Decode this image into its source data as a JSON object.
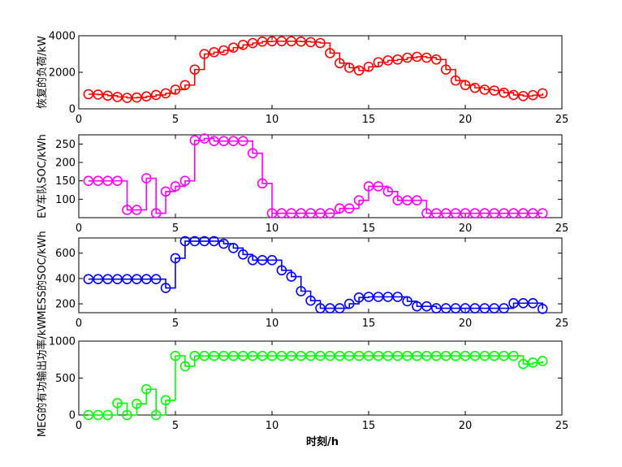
{
  "figure": {
    "xlabel": "时刻/h"
  },
  "chart_data": [
    {
      "type": "line",
      "ylabel": "恢复的负荷/kW",
      "color": "#ff0000",
      "xlim": [
        0,
        25
      ],
      "ylim": [
        0,
        4000
      ],
      "xticks": [
        0,
        5,
        10,
        15,
        20,
        25
      ],
      "yticks": [
        0,
        2000,
        4000
      ],
      "x": [
        0.5,
        1.0,
        1.5,
        2.0,
        2.5,
        3.0,
        3.5,
        4.0,
        4.5,
        5.0,
        5.5,
        6.0,
        6.5,
        7.0,
        7.5,
        8.0,
        8.5,
        9.0,
        9.5,
        10.0,
        10.5,
        11.0,
        11.5,
        12.0,
        12.5,
        13.0,
        13.5,
        14.0,
        14.5,
        15.0,
        15.5,
        16.0,
        16.5,
        17.0,
        17.5,
        18.0,
        18.5,
        19.0,
        19.5,
        20.0,
        20.5,
        21.0,
        21.5,
        22.0,
        22.5,
        23.0,
        23.5,
        24.0
      ],
      "y": [
        800,
        780,
        720,
        650,
        600,
        620,
        680,
        760,
        850,
        1050,
        1300,
        2150,
        3000,
        3100,
        3200,
        3350,
        3500,
        3600,
        3680,
        3700,
        3700,
        3700,
        3680,
        3650,
        3600,
        3050,
        2500,
        2250,
        2100,
        2300,
        2550,
        2650,
        2700,
        2800,
        2850,
        2800,
        2700,
        2150,
        1550,
        1300,
        1150,
        1050,
        1000,
        880,
        760,
        700,
        750,
        850
      ]
    },
    {
      "type": "line",
      "ylabel": "EV车队SOC/kWh",
      "color": "#ff00ff",
      "xlim": [
        0,
        25
      ],
      "ylim": [
        50,
        275
      ],
      "xticks": [
        0,
        5,
        10,
        15,
        20,
        25
      ],
      "yticks": [
        100,
        150,
        200,
        250
      ],
      "x": [
        0.5,
        1.0,
        1.5,
        2.0,
        2.5,
        3.0,
        3.5,
        4.0,
        4.5,
        5.0,
        5.5,
        6.0,
        6.5,
        7.0,
        7.5,
        8.0,
        8.5,
        9.0,
        9.5,
        10.0,
        10.5,
        11.0,
        11.5,
        12.0,
        12.5,
        13.0,
        13.5,
        14.0,
        14.5,
        15.0,
        15.5,
        16.0,
        16.5,
        17.0,
        17.5,
        18.0,
        18.5,
        19.0,
        19.5,
        20.0,
        20.5,
        21.0,
        21.5,
        22.0,
        22.5,
        23.0,
        23.5,
        24.0
      ],
      "y": [
        150,
        150,
        150,
        150,
        71,
        71,
        157,
        62,
        121,
        135,
        150,
        260,
        265,
        258,
        258,
        258,
        258,
        225,
        143,
        62,
        62,
        62,
        62,
        62,
        62,
        62,
        75,
        75,
        97,
        135,
        135,
        121,
        97,
        97,
        97,
        62,
        62,
        62,
        62,
        62,
        62,
        62,
        62,
        62,
        62,
        62,
        62,
        62
      ]
    },
    {
      "type": "line",
      "ylabel": "MESS的SOC/kWh",
      "color": "#0000ff",
      "xlim": [
        0,
        25
      ],
      "ylim": [
        130,
        720
      ],
      "xticks": [
        0,
        5,
        10,
        15,
        20,
        25
      ],
      "yticks": [
        200,
        400,
        600
      ],
      "x": [
        0.5,
        1.0,
        1.5,
        2.0,
        2.5,
        3.0,
        3.5,
        4.0,
        4.5,
        5.0,
        5.5,
        6.0,
        6.5,
        7.0,
        7.5,
        8.0,
        8.5,
        9.0,
        9.5,
        10.0,
        10.5,
        11.0,
        11.5,
        12.0,
        12.5,
        13.0,
        13.5,
        14.0,
        14.5,
        15.0,
        15.5,
        16.0,
        16.5,
        17.0,
        17.5,
        18.0,
        18.5,
        19.0,
        19.5,
        20.0,
        20.5,
        21.0,
        21.5,
        22.0,
        22.5,
        23.0,
        23.5,
        24.0
      ],
      "y": [
        395,
        395,
        395,
        395,
        395,
        395,
        395,
        395,
        325,
        560,
        695,
        695,
        695,
        695,
        675,
        640,
        590,
        545,
        545,
        545,
        465,
        415,
        300,
        225,
        165,
        165,
        165,
        200,
        250,
        255,
        255,
        255,
        255,
        220,
        180,
        180,
        165,
        165,
        165,
        165,
        165,
        165,
        165,
        165,
        205,
        205,
        205,
        160
      ]
    },
    {
      "type": "line",
      "ylabel": "MEG的有功输出功率/kW",
      "color": "#00ff00",
      "xlim": [
        0,
        25
      ],
      "ylim": [
        0,
        1000
      ],
      "xticks": [
        0,
        5,
        10,
        15,
        20,
        25
      ],
      "yticks": [
        0,
        500,
        1000
      ],
      "x": [
        0.5,
        1.0,
        1.5,
        2.0,
        2.5,
        3.0,
        3.5,
        4.0,
        4.5,
        5.0,
        5.5,
        6.0,
        6.5,
        7.0,
        7.5,
        8.0,
        8.5,
        9.0,
        9.5,
        10.0,
        10.5,
        11.0,
        11.5,
        12.0,
        12.5,
        13.0,
        13.5,
        14.0,
        14.5,
        15.0,
        15.5,
        16.0,
        16.5,
        17.0,
        17.5,
        18.0,
        18.5,
        19.0,
        19.5,
        20.0,
        20.5,
        21.0,
        21.5,
        22.0,
        22.5,
        23.0,
        23.5,
        24.0
      ],
      "y": [
        0,
        0,
        0,
        160,
        0,
        150,
        350,
        0,
        200,
        800,
        660,
        800,
        800,
        800,
        800,
        800,
        800,
        800,
        800,
        800,
        800,
        800,
        800,
        800,
        800,
        800,
        800,
        800,
        800,
        800,
        800,
        800,
        800,
        800,
        800,
        800,
        800,
        800,
        800,
        800,
        800,
        800,
        800,
        800,
        800,
        690,
        710,
        730
      ]
    }
  ]
}
